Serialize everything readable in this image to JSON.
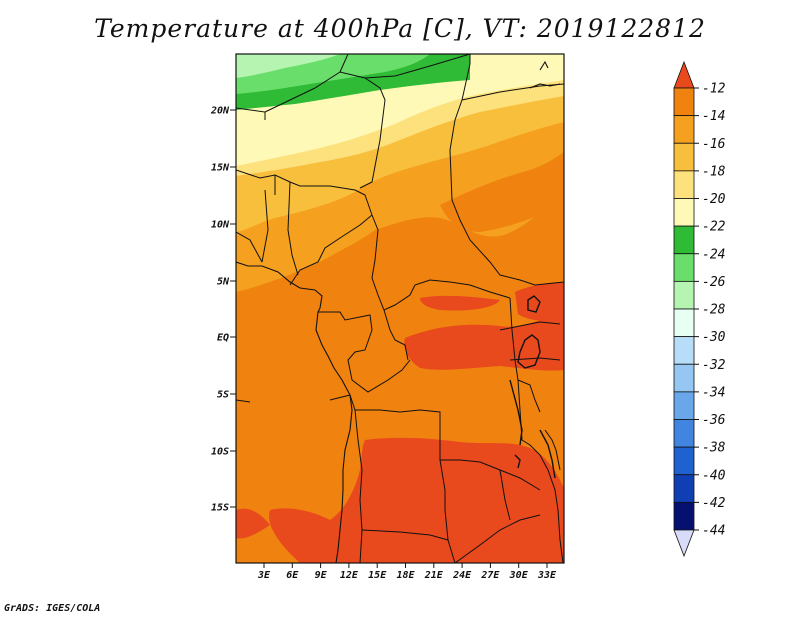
{
  "title": "Temperature at 400hPa [C], VT: 2019122812",
  "credit": "GrADS: IGES/COLA",
  "lat_labels": [
    "20N",
    "15N",
    "10N",
    "5N",
    "EQ",
    "5S",
    "10S",
    "15S"
  ],
  "lon_labels": [
    "3E",
    "6E",
    "9E",
    "12E",
    "15E",
    "18E",
    "21E",
    "24E",
    "27E",
    "30E",
    "33E"
  ],
  "colorbar": {
    "labels": [
      "-12",
      "-14",
      "-16",
      "-18",
      "-20",
      "-22",
      "-24",
      "-26",
      "-28",
      "-30",
      "-32",
      "-34",
      "-36",
      "-38",
      "-40",
      "-42",
      "-44"
    ],
    "colors": [
      "#e8491d",
      "#f0820f",
      "#f5a01e",
      "#f8bf3c",
      "#fde17d",
      "#fff9b8",
      "#2fbb35",
      "#6ade6a",
      "#b6f4b2",
      "#e8fff4",
      "#b8ddf8",
      "#95c7f2",
      "#6aa7ea",
      "#4285e0",
      "#1f62cf",
      "#0f3fb2",
      "#06116f",
      "#d8dcf8"
    ]
  },
  "map_colors": {
    "c22": "#fff9b8",
    "c20": "#fde17d",
    "c18": "#f8bf3c",
    "c16": "#f5a01e",
    "c14": "#f0820f",
    "c12": "#e8491d",
    "g24": "#2fbb35",
    "g26": "#6ade6a",
    "g28": "#b6f4b2"
  }
}
